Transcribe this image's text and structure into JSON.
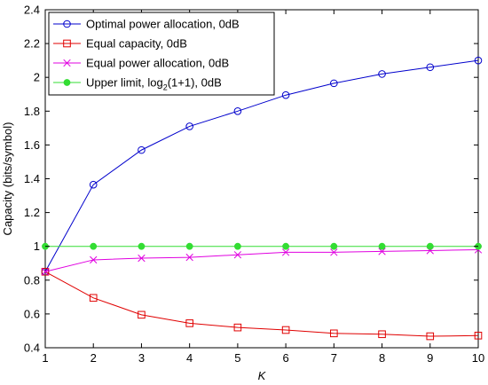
{
  "chart_data": {
    "type": "line",
    "xlabel": "K",
    "ylabel": "Capacity (bits/symbol)",
    "xlim": [
      1,
      10
    ],
    "ylim": [
      0.4,
      2.4
    ],
    "xticks": [
      "1",
      "2",
      "3",
      "4",
      "5",
      "6",
      "7",
      "8",
      "9",
      "10"
    ],
    "yticks": [
      "0.4",
      "0.6",
      "0.8",
      "1",
      "1.2",
      "1.4",
      "1.6",
      "1.8",
      "2",
      "2.2",
      "2.4"
    ],
    "grid": false,
    "legend_position": "top-left",
    "x": [
      1,
      2,
      3,
      4,
      5,
      6,
      7,
      8,
      9,
      10
    ],
    "series": [
      {
        "name": "Optimal power allocation, 0dB",
        "color": "#0000cc",
        "marker": "circle",
        "values": [
          0.85,
          1.365,
          1.57,
          1.71,
          1.8,
          1.895,
          1.965,
          2.02,
          2.06,
          2.1
        ]
      },
      {
        "name": "Equal capacity, 0dB",
        "color": "#e00000",
        "marker": "square",
        "values": [
          0.85,
          0.695,
          0.595,
          0.545,
          0.52,
          0.505,
          0.485,
          0.48,
          0.468,
          0.472
        ]
      },
      {
        "name": "Equal power allocation, 0dB",
        "color": "#e000e0",
        "marker": "x",
        "values": [
          0.85,
          0.92,
          0.93,
          0.935,
          0.95,
          0.965,
          0.965,
          0.97,
          0.975,
          0.98
        ]
      },
      {
        "name_parts": [
          "Upper limit, log",
          "2",
          "(1+1), 0dB"
        ],
        "color": "#33dd33",
        "marker": "dot",
        "values": [
          1,
          1,
          1,
          1,
          1,
          1,
          1,
          1,
          1,
          1
        ]
      }
    ]
  }
}
